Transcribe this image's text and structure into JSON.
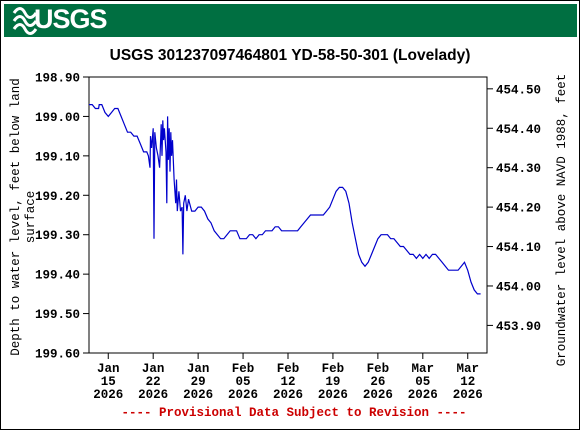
{
  "header": {
    "logo_text": "USGS",
    "logo_icon": "usgs-wave-icon",
    "banner_color": "#006f41"
  },
  "chart_data": {
    "type": "line",
    "title": "USGS 301237097464801 YD-58-50-301 (Lovelady)",
    "ylabel_left": [
      "Depth to water level, feet below land",
      "surface"
    ],
    "ylabel_right": "Groundwater level above NAVD 1988, feet",
    "footer_note": "---- Provisional Data Subject to Revision ----",
    "line_color": "#0000cc",
    "note_color": "#cc0000",
    "grid": false,
    "y_inverted": true,
    "ylim_left": [
      198.9,
      199.6
    ],
    "ylim_right": [
      453.83,
      454.53
    ],
    "yticks_left": [
      "198.90",
      "199.00",
      "199.10",
      "199.20",
      "199.30",
      "199.40",
      "199.50",
      "199.60"
    ],
    "yticks_right": [
      "454.50",
      "454.40",
      "454.30",
      "454.20",
      "454.10",
      "454.00",
      "453.90"
    ],
    "yticks_right_values": [
      454.5,
      454.4,
      454.3,
      454.2,
      454.1,
      454.0,
      453.9
    ],
    "xlim": [
      "2026-01-12",
      "2026-03-15"
    ],
    "xticks": [
      {
        "date": "2026-01-15",
        "line1": "Jan",
        "line2": "15",
        "line3": "2026"
      },
      {
        "date": "2026-01-22",
        "line1": "Jan",
        "line2": "22",
        "line3": "2026"
      },
      {
        "date": "2026-01-29",
        "line1": "Jan",
        "line2": "29",
        "line3": "2026"
      },
      {
        "date": "2026-02-05",
        "line1": "Feb",
        "line2": "05",
        "line3": "2026"
      },
      {
        "date": "2026-02-12",
        "line1": "Feb",
        "line2": "12",
        "line3": "2026"
      },
      {
        "date": "2026-02-19",
        "line1": "Feb",
        "line2": "19",
        "line3": "2026"
      },
      {
        "date": "2026-02-26",
        "line1": "Feb",
        "line2": "26",
        "line3": "2026"
      },
      {
        "date": "2026-03-05",
        "line1": "Mar",
        "line2": "05",
        "line3": "2026"
      },
      {
        "date": "2026-03-12",
        "line1": "Mar",
        "line2": "12",
        "line3": "2026"
      }
    ],
    "series": [
      {
        "points": [
          [
            "2026-01-12T00:00",
            198.97
          ],
          [
            "2026-01-12T12:00",
            198.97
          ],
          [
            "2026-01-13T00:00",
            198.98
          ],
          [
            "2026-01-13T12:00",
            198.98
          ],
          [
            "2026-01-13T14:00",
            198.97
          ],
          [
            "2026-01-14T00:00",
            198.97
          ],
          [
            "2026-01-14T12:00",
            198.99
          ],
          [
            "2026-01-15T00:00",
            199.0
          ],
          [
            "2026-01-15T12:00",
            198.99
          ],
          [
            "2026-01-16T00:00",
            198.98
          ],
          [
            "2026-01-16T12:00",
            198.98
          ],
          [
            "2026-01-17T00:00",
            199.0
          ],
          [
            "2026-01-17T12:00",
            199.02
          ],
          [
            "2026-01-18T00:00",
            199.04
          ],
          [
            "2026-01-18T12:00",
            199.04
          ],
          [
            "2026-01-19T00:00",
            199.05
          ],
          [
            "2026-01-19T12:00",
            199.05
          ],
          [
            "2026-01-20T00:00",
            199.07
          ],
          [
            "2026-01-20T12:00",
            199.09
          ],
          [
            "2026-01-21T00:00",
            199.09
          ],
          [
            "2026-01-21T06:00",
            199.1
          ],
          [
            "2026-01-21T12:00",
            199.13
          ],
          [
            "2026-01-21T14:00",
            199.05
          ],
          [
            "2026-01-21T18:00",
            199.08
          ],
          [
            "2026-01-22T00:00",
            199.03
          ],
          [
            "2026-01-22T03:00",
            199.31
          ],
          [
            "2026-01-22T06:00",
            199.04
          ],
          [
            "2026-01-22T12:00",
            199.08
          ],
          [
            "2026-01-22T18:00",
            199.1
          ],
          [
            "2026-01-23T00:00",
            199.13
          ],
          [
            "2026-01-23T06:00",
            199.02
          ],
          [
            "2026-01-23T09:00",
            199.1
          ],
          [
            "2026-01-23T12:00",
            199.01
          ],
          [
            "2026-01-23T15:00",
            199.06
          ],
          [
            "2026-01-23T18:00",
            199.03
          ],
          [
            "2026-01-24T00:00",
            199.09
          ],
          [
            "2026-01-24T03:00",
            199.22
          ],
          [
            "2026-01-24T06:00",
            199.0
          ],
          [
            "2026-01-24T09:00",
            199.11
          ],
          [
            "2026-01-24T12:00",
            199.03
          ],
          [
            "2026-01-24T15:00",
            199.14
          ],
          [
            "2026-01-24T18:00",
            199.04
          ],
          [
            "2026-01-24T21:00",
            199.1
          ],
          [
            "2026-01-25T00:00",
            199.06
          ],
          [
            "2026-01-25T06:00",
            199.16
          ],
          [
            "2026-01-25T12:00",
            199.22
          ],
          [
            "2026-01-25T15:00",
            199.16
          ],
          [
            "2026-01-25T18:00",
            199.24
          ],
          [
            "2026-01-26T00:00",
            199.19
          ],
          [
            "2026-01-26T06:00",
            199.24
          ],
          [
            "2026-01-26T12:00",
            199.23
          ],
          [
            "2026-01-26T15:00",
            199.35
          ],
          [
            "2026-01-26T18:00",
            199.22
          ],
          [
            "2026-01-27T00:00",
            199.2
          ],
          [
            "2026-01-27T06:00",
            199.24
          ],
          [
            "2026-01-27T12:00",
            199.21
          ],
          [
            "2026-01-28T00:00",
            199.24
          ],
          [
            "2026-01-28T12:00",
            199.24
          ],
          [
            "2026-01-29T00:00",
            199.23
          ],
          [
            "2026-01-29T12:00",
            199.23
          ],
          [
            "2026-01-30T00:00",
            199.24
          ],
          [
            "2026-01-30T12:00",
            199.26
          ],
          [
            "2026-01-31T00:00",
            199.27
          ],
          [
            "2026-01-31T12:00",
            199.29
          ],
          [
            "2026-02-01T00:00",
            199.3
          ],
          [
            "2026-02-01T12:00",
            199.31
          ],
          [
            "2026-02-02T00:00",
            199.31
          ],
          [
            "2026-02-02T12:00",
            199.3
          ],
          [
            "2026-02-03T00:00",
            199.29
          ],
          [
            "2026-02-03T12:00",
            199.29
          ],
          [
            "2026-02-04T00:00",
            199.29
          ],
          [
            "2026-02-04T12:00",
            199.31
          ],
          [
            "2026-02-05T00:00",
            199.31
          ],
          [
            "2026-02-05T12:00",
            199.31
          ],
          [
            "2026-02-06T00:00",
            199.3
          ],
          [
            "2026-02-06T12:00",
            199.3
          ],
          [
            "2026-02-07T00:00",
            199.31
          ],
          [
            "2026-02-07T12:00",
            199.3
          ],
          [
            "2026-02-08T00:00",
            199.3
          ],
          [
            "2026-02-08T12:00",
            199.29
          ],
          [
            "2026-02-09T00:00",
            199.29
          ],
          [
            "2026-02-09T12:00",
            199.29
          ],
          [
            "2026-02-10T00:00",
            199.28
          ],
          [
            "2026-02-10T12:00",
            199.28
          ],
          [
            "2026-02-11T00:00",
            199.29
          ],
          [
            "2026-02-12T00:00",
            199.29
          ],
          [
            "2026-02-12T12:00",
            199.29
          ],
          [
            "2026-02-13T00:00",
            199.29
          ],
          [
            "2026-02-13T12:00",
            199.29
          ],
          [
            "2026-02-14T00:00",
            199.28
          ],
          [
            "2026-02-14T12:00",
            199.27
          ],
          [
            "2026-02-15T00:00",
            199.26
          ],
          [
            "2026-02-15T12:00",
            199.25
          ],
          [
            "2026-02-16T00:00",
            199.25
          ],
          [
            "2026-02-16T12:00",
            199.25
          ],
          [
            "2026-02-17T00:00",
            199.25
          ],
          [
            "2026-02-17T12:00",
            199.25
          ],
          [
            "2026-02-18T00:00",
            199.24
          ],
          [
            "2026-02-18T12:00",
            199.23
          ],
          [
            "2026-02-19T00:00",
            199.21
          ],
          [
            "2026-02-19T12:00",
            199.19
          ],
          [
            "2026-02-20T00:00",
            199.18
          ],
          [
            "2026-02-20T12:00",
            199.18
          ],
          [
            "2026-02-21T00:00",
            199.19
          ],
          [
            "2026-02-21T12:00",
            199.22
          ],
          [
            "2026-02-22T00:00",
            199.27
          ],
          [
            "2026-02-22T12:00",
            199.31
          ],
          [
            "2026-02-23T00:00",
            199.35
          ],
          [
            "2026-02-23T12:00",
            199.37
          ],
          [
            "2026-02-24T00:00",
            199.38
          ],
          [
            "2026-02-24T12:00",
            199.37
          ],
          [
            "2026-02-25T00:00",
            199.35
          ],
          [
            "2026-02-25T12:00",
            199.33
          ],
          [
            "2026-02-26T00:00",
            199.31
          ],
          [
            "2026-02-26T12:00",
            199.3
          ],
          [
            "2026-02-27T00:00",
            199.3
          ],
          [
            "2026-02-27T12:00",
            199.3
          ],
          [
            "2026-02-28T00:00",
            199.31
          ],
          [
            "2026-02-28T12:00",
            199.31
          ],
          [
            "2026-03-01T00:00",
            199.32
          ],
          [
            "2026-03-01T12:00",
            199.33
          ],
          [
            "2026-03-02T00:00",
            199.33
          ],
          [
            "2026-03-02T12:00",
            199.34
          ],
          [
            "2026-03-03T00:00",
            199.35
          ],
          [
            "2026-03-03T12:00",
            199.35
          ],
          [
            "2026-03-04T00:00",
            199.36
          ],
          [
            "2026-03-04T12:00",
            199.35
          ],
          [
            "2026-03-05T00:00",
            199.36
          ],
          [
            "2026-03-05T12:00",
            199.35
          ],
          [
            "2026-03-06T00:00",
            199.36
          ],
          [
            "2026-03-06T12:00",
            199.35
          ],
          [
            "2026-03-07T00:00",
            199.35
          ],
          [
            "2026-03-07T12:00",
            199.36
          ],
          [
            "2026-03-08T00:00",
            199.37
          ],
          [
            "2026-03-08T12:00",
            199.38
          ],
          [
            "2026-03-09T00:00",
            199.39
          ],
          [
            "2026-03-09T12:00",
            199.39
          ],
          [
            "2026-03-10T00:00",
            199.39
          ],
          [
            "2026-03-10T12:00",
            199.39
          ],
          [
            "2026-03-11T00:00",
            199.38
          ],
          [
            "2026-03-11T12:00",
            199.37
          ],
          [
            "2026-03-12T00:00",
            199.39
          ],
          [
            "2026-03-12T12:00",
            199.42
          ],
          [
            "2026-03-13T00:00",
            199.44
          ],
          [
            "2026-03-13T12:00",
            199.45
          ],
          [
            "2026-03-14T00:00",
            199.45
          ]
        ]
      }
    ]
  }
}
